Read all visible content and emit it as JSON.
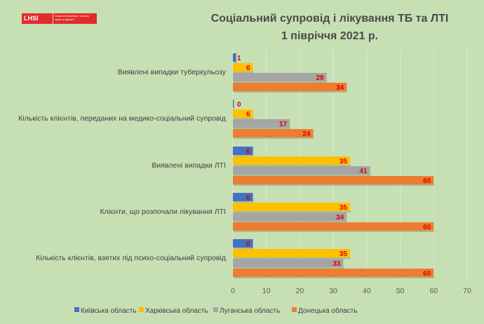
{
  "logo": {
    "name": "LHSI",
    "tagline": "Соціальні ініціативи з охорони праці та здоров'я"
  },
  "chart_data": {
    "type": "bar",
    "orientation": "horizontal",
    "title": "Соціальний супровід і лікування ТБ та ЛТІ",
    "subtitle": "1 півріччя 2021 р.",
    "categories": [
      "Виявлені випадки туберкульозу",
      "Кількість клієнтів, переданих на медико-соціальний супровід",
      "Виявлені випадки ЛТІ",
      "Клієнти, що розпочали лікування ЛТІ",
      "Кількість клієнтів, взятих під психо-соціальний супровід"
    ],
    "series": [
      {
        "name": "Київська область",
        "color": "#4472c4",
        "values": [
          1,
          null,
          6,
          6,
          6
        ]
      },
      {
        "name": "Харківська область",
        "color": "#ffc000",
        "values": [
          6,
          6,
          35,
          35,
          35
        ]
      },
      {
        "name": "Луганська область",
        "color": "#a5a5a5",
        "values": [
          28,
          17,
          41,
          34,
          33
        ]
      },
      {
        "name": "Донецька область",
        "color": "#ed7d31",
        "values": [
          34,
          24,
          60,
          60,
          60
        ]
      }
    ],
    "data_labels": [
      [
        "1",
        "6",
        "28",
        "34"
      ],
      [
        "0",
        "6",
        "17",
        "24"
      ],
      [
        "6",
        "35",
        "41",
        "60"
      ],
      [
        "6",
        "35",
        "34",
        "60"
      ],
      [
        "6",
        "35",
        "33",
        "60"
      ]
    ],
    "xlim": [
      0,
      70
    ],
    "xticks": [
      "0",
      "10",
      "20",
      "30",
      "40",
      "50",
      "60",
      "70"
    ],
    "grid": true,
    "legend": "bottom"
  }
}
